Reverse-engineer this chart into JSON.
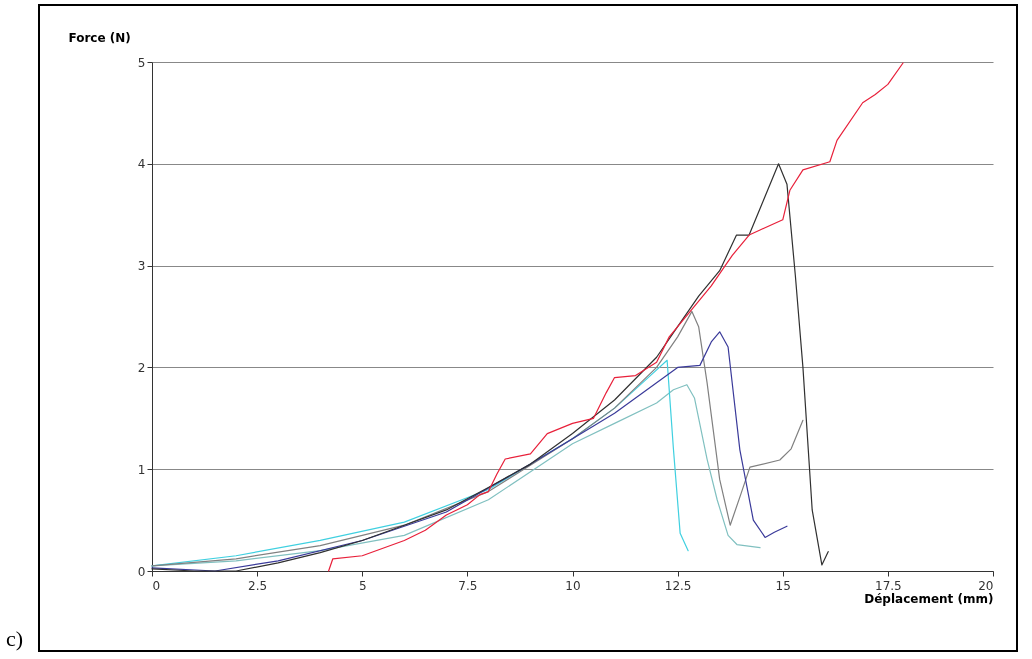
{
  "chart_data": {
    "type": "line",
    "xlabel": "Déplacement (mm)",
    "ylabel": "Force (N)",
    "annotations": [
      "c)"
    ],
    "xlim": [
      0,
      20
    ],
    "xticks": [
      0,
      2.5,
      5,
      7.5,
      10,
      12.5,
      15,
      17.5,
      20
    ],
    "ylim": [
      0,
      5
    ],
    "yticks": [
      0,
      1,
      2,
      3,
      4,
      5
    ],
    "grid": "y",
    "legend": false,
    "marker": "none",
    "line_style": "solid",
    "series": [
      {
        "color": "#80c0c0",
        "x": [
          0,
          2,
          4,
          6,
          8,
          10,
          11,
          12,
          12.4,
          12.72,
          12.9,
          13.2,
          13.44,
          13.7,
          13.91,
          14.46
        ],
        "values": [
          0.05,
          0.1,
          0.2,
          0.35,
          0.7,
          1.25,
          1.45,
          1.65,
          1.78,
          1.83,
          1.7,
          1.1,
          0.7,
          0.35,
          0.26,
          0.23
        ]
      },
      {
        "color": "#40d0e0",
        "x": [
          0,
          2,
          4,
          6,
          8,
          10,
          11,
          11.8,
          12.25,
          12.4,
          12.56,
          12.75
        ],
        "values": [
          0.05,
          0.15,
          0.3,
          0.48,
          0.8,
          1.3,
          1.6,
          1.9,
          2.07,
          1.2,
          0.37,
          0.2
        ]
      },
      {
        "color": "#808080",
        "x": [
          0,
          2,
          4,
          6,
          8,
          10,
          11,
          12,
          12.5,
          12.84,
          13.0,
          13.2,
          13.5,
          13.75,
          14.0,
          14.22,
          14.93,
          15.2,
          15.48
        ],
        "values": [
          0.05,
          0.12,
          0.25,
          0.45,
          0.78,
          1.3,
          1.6,
          2.0,
          2.3,
          2.55,
          2.4,
          1.85,
          0.9,
          0.45,
          0.75,
          1.02,
          1.09,
          1.2,
          1.48
        ]
      },
      {
        "color": "#3a3a9a",
        "x": [
          0,
          1.5,
          3,
          5,
          7,
          9,
          10,
          11,
          12,
          12.5,
          13.03,
          13.3,
          13.5,
          13.7,
          13.98,
          14.3,
          14.58,
          14.8,
          15.1
        ],
        "values": [
          0.03,
          0.0,
          0.1,
          0.3,
          0.58,
          1.05,
          1.3,
          1.55,
          1.85,
          2.0,
          2.02,
          2.25,
          2.35,
          2.2,
          1.19,
          0.5,
          0.33,
          0.38,
          0.44
        ]
      },
      {
        "color": "#303030",
        "x": [
          0,
          1,
          2,
          3,
          4,
          5,
          6,
          7,
          8,
          9,
          10,
          11,
          12,
          12.5,
          13,
          13.5,
          13.9,
          14.2,
          14.5,
          14.9,
          15.1,
          15.3,
          15.48,
          15.7,
          15.93,
          16.08
        ],
        "values": [
          0.02,
          0.0,
          0.0,
          0.08,
          0.18,
          0.3,
          0.45,
          0.6,
          0.82,
          1.05,
          1.35,
          1.68,
          2.1,
          2.4,
          2.7,
          2.95,
          3.3,
          3.3,
          3.6,
          4.0,
          3.8,
          2.9,
          2.0,
          0.6,
          0.06,
          0.19
        ]
      },
      {
        "color": "#e8203a",
        "x": [
          4.2,
          4.3,
          5,
          6,
          6.5,
          7,
          7.5,
          7.8,
          8,
          8.2,
          8.4,
          9,
          9.4,
          10,
          10.5,
          10.8,
          11,
          11.5,
          12,
          12.3,
          12.8,
          13.3,
          13.8,
          14.2,
          14.46,
          15.0,
          15.17,
          15.48,
          16.12,
          16.29,
          16.9,
          17.2,
          17.5,
          17.86
        ],
        "values": [
          0,
          0.12,
          0.15,
          0.3,
          0.4,
          0.55,
          0.65,
          0.75,
          0.78,
          0.95,
          1.1,
          1.15,
          1.35,
          1.45,
          1.5,
          1.75,
          1.9,
          1.92,
          2.05,
          2.3,
          2.55,
          2.8,
          3.1,
          3.3,
          3.35,
          3.45,
          3.74,
          3.94,
          4.02,
          4.23,
          4.6,
          4.68,
          4.78,
          4.99
        ]
      }
    ]
  }
}
